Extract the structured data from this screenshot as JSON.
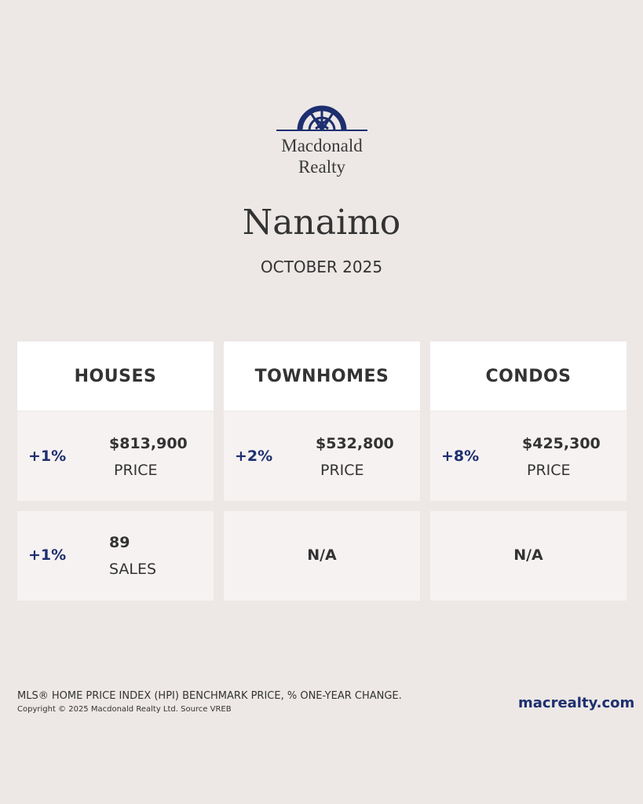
{
  "logo": {
    "line1": "Macdonald",
    "line2": "Realty"
  },
  "title": "Nanaimo",
  "subtitle": "OCTOBER 2025",
  "columns": [
    {
      "heading": "HOUSES",
      "price": {
        "change": "+1%",
        "value": "$813,900",
        "label": "PRICE"
      },
      "sales": {
        "change": "+1%",
        "value": "89",
        "label": "SALES"
      }
    },
    {
      "heading": "TOWNHOMES",
      "price": {
        "change": "+2%",
        "value": "$532,800",
        "label": "PRICE"
      },
      "sales": {
        "na": "N/A"
      }
    },
    {
      "heading": "CONDOS",
      "price": {
        "change": "+8%",
        "value": "$425,300",
        "label": "PRICE"
      },
      "sales": {
        "na": "N/A"
      }
    }
  ],
  "footer": {
    "note": "MLS® HOME PRICE INDEX (HPI) BENCHMARK PRICE, % ONE-YEAR CHANGE.",
    "copyright": "Copyright © 2025 Macdonald Realty Ltd. Source VREB",
    "website": "macrealty.com"
  }
}
